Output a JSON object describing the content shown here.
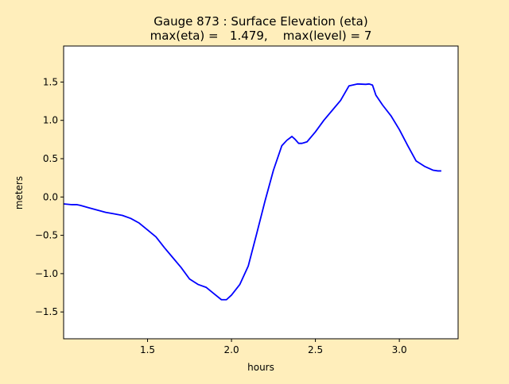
{
  "figure": {
    "background": "#ffeebb",
    "plot_background": "#ffffff"
  },
  "chart_data": {
    "type": "line",
    "title": "Gauge 873 : Surface Elevation (eta)",
    "subtitle": "max(eta) =   1.479,    max(level) = 7",
    "xlabel": "hours",
    "ylabel": "meters",
    "xlim": [
      1.0,
      3.35
    ],
    "ylim": [
      -1.85,
      1.97
    ],
    "xticks": [
      1.5,
      2.0,
      2.5,
      3.0
    ],
    "xtick_labels": [
      "1.5",
      "2.0",
      "2.5",
      "3.0"
    ],
    "yticks": [
      -1.5,
      -1.0,
      -0.5,
      0.0,
      0.5,
      1.0,
      1.5
    ],
    "ytick_labels": [
      "−1.5",
      "−1.0",
      "−0.5",
      "0.0",
      "0.5",
      "1.0",
      "1.5"
    ],
    "grid": false,
    "series": [
      {
        "color": "#0000ff",
        "x": [
          1.0,
          1.05,
          1.08,
          1.1,
          1.15,
          1.2,
          1.25,
          1.3,
          1.35,
          1.4,
          1.45,
          1.5,
          1.55,
          1.6,
          1.65,
          1.7,
          1.75,
          1.8,
          1.85,
          1.9,
          1.94,
          1.97,
          2.0,
          2.05,
          2.1,
          2.15,
          2.2,
          2.25,
          2.3,
          2.33,
          2.36,
          2.38,
          2.4,
          2.42,
          2.45,
          2.5,
          2.55,
          2.6,
          2.65,
          2.7,
          2.75,
          2.8,
          2.82,
          2.84,
          2.86,
          2.9,
          2.95,
          3.0,
          3.05,
          3.1,
          3.15,
          3.2,
          3.23,
          3.25
        ],
        "y": [
          -0.09,
          -0.1,
          -0.1,
          -0.11,
          -0.14,
          -0.17,
          -0.2,
          -0.22,
          -0.24,
          -0.28,
          -0.34,
          -0.43,
          -0.52,
          -0.66,
          -0.79,
          -0.92,
          -1.07,
          -1.14,
          -1.18,
          -1.27,
          -1.34,
          -1.34,
          -1.28,
          -1.14,
          -0.9,
          -0.48,
          -0.05,
          0.35,
          0.67,
          0.74,
          0.79,
          0.75,
          0.7,
          0.7,
          0.72,
          0.85,
          1.0,
          1.13,
          1.26,
          1.45,
          1.475,
          1.47,
          1.475,
          1.46,
          1.33,
          1.2,
          1.06,
          0.88,
          0.67,
          0.47,
          0.4,
          0.35,
          0.34,
          0.34
        ]
      }
    ]
  }
}
